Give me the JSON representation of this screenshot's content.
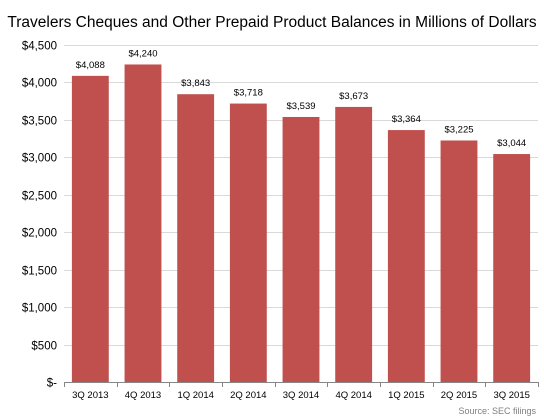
{
  "chart_data": {
    "type": "bar",
    "title": "Travelers Cheques and Other Prepaid Product Balances in Millions of Dollars",
    "xlabel": "",
    "ylabel": "",
    "categories": [
      "3Q 2013",
      "4Q 2013",
      "1Q 2014",
      "2Q 2014",
      "3Q 2014",
      "4Q 2014",
      "1Q 2015",
      "2Q 2015",
      "3Q 2015"
    ],
    "values": [
      4088,
      4240,
      3843,
      3718,
      3539,
      3673,
      3364,
      3225,
      3044
    ],
    "data_labels": [
      "$4,088",
      "$4,240",
      "$3,843",
      "$3,718",
      "$3,539",
      "$3,673",
      "$3,364",
      "$3,225",
      "$3,044"
    ],
    "ylim": [
      0,
      4500
    ],
    "y_ticks": [
      0,
      500,
      1000,
      1500,
      2000,
      2500,
      3000,
      3500,
      4000,
      4500
    ],
    "y_tick_labels": [
      "$-",
      "$500",
      "$1,000",
      "$1,500",
      "$2,000",
      "$2,500",
      "$3,000",
      "$3,500",
      "$4,000",
      "$4,500"
    ],
    "grid": true,
    "legend": "none",
    "bar_color": "#c0504d",
    "source": "Source: SEC filings"
  }
}
